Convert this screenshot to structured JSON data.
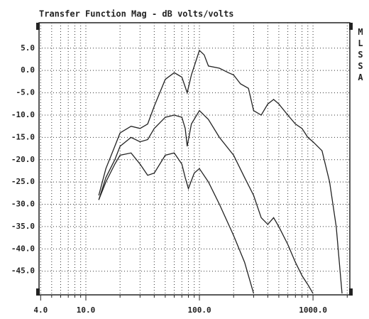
{
  "chart_data": {
    "type": "line",
    "title": "Transfer Function Mag - dB volts/volts",
    "annotation": "MLSSA",
    "log_x": true,
    "grid": true,
    "xlim": [
      3.87,
      2110
    ],
    "ylim": [
      -50.3,
      10.7
    ],
    "xticks": [
      {
        "value": 4,
        "label": "4.0"
      },
      {
        "value": 10,
        "label": "10.0"
      },
      {
        "value": 100,
        "label": "100.0"
      },
      {
        "value": 1000,
        "label": "1000.0"
      }
    ],
    "xminorticks": [
      5,
      6,
      7,
      8,
      9,
      20,
      30,
      40,
      50,
      60,
      70,
      80,
      90,
      200,
      300,
      400,
      500,
      600,
      700,
      800,
      900,
      2000
    ],
    "yticks": [
      {
        "value": 5,
        "label": "5.0"
      },
      {
        "value": 0,
        "label": "0.0"
      },
      {
        "value": -5,
        "label": "-5.0"
      },
      {
        "value": -10,
        "label": "-10.0"
      },
      {
        "value": -15,
        "label": "-15.0"
      },
      {
        "value": -20,
        "label": "-20.0"
      },
      {
        "value": -25,
        "label": "-25.0"
      },
      {
        "value": -30,
        "label": "-30.0"
      },
      {
        "value": -35,
        "label": "-35.0"
      },
      {
        "value": -40,
        "label": "-40.0"
      },
      {
        "value": -45,
        "label": "-45.0"
      }
    ],
    "series": [
      {
        "color": "#222222",
        "x": [
          13,
          15,
          18,
          20,
          25,
          30,
          35,
          40,
          50,
          60,
          65,
          70,
          78,
          85,
          100,
          110,
          120,
          150,
          180,
          200,
          230,
          270,
          300,
          350,
          400,
          450,
          500,
          600,
          700,
          800,
          900,
          1000,
          1200,
          1400,
          1600,
          1800
        ],
        "values": [
          -28,
          -22,
          -17,
          -14,
          -12.5,
          -13,
          -12,
          -8,
          -2,
          -0.5,
          -1,
          -1.5,
          -5,
          -1,
          4.5,
          3.5,
          1,
          0.5,
          -0.5,
          -1,
          -3,
          -4,
          -9,
          -10,
          -7.5,
          -6.5,
          -7.5,
          -10,
          -12,
          -13,
          -15,
          -16,
          -18,
          -25,
          -35,
          -50
        ]
      },
      {
        "color": "#222222",
        "x": [
          13,
          15,
          18,
          20,
          25,
          30,
          35,
          40,
          50,
          60,
          70,
          75,
          78,
          85,
          100,
          120,
          150,
          200,
          250,
          300,
          350,
          400,
          450,
          500,
          600,
          700,
          800,
          900,
          1000
        ],
        "values": [
          -29,
          -24,
          -20,
          -17,
          -15,
          -16,
          -15.5,
          -13,
          -10.5,
          -10,
          -10.5,
          -13,
          -17,
          -12,
          -9,
          -11,
          -15,
          -19,
          -24,
          -28,
          -33,
          -34.5,
          -33,
          -35,
          -39,
          -43,
          -46,
          -48,
          -50
        ]
      },
      {
        "color": "#222222",
        "x": [
          13,
          15,
          18,
          20,
          25,
          30,
          35,
          40,
          50,
          60,
          70,
          75,
          80,
          90,
          100,
          120,
          150,
          200,
          250,
          300
        ],
        "values": [
          -29,
          -25,
          -21,
          -19,
          -18.5,
          -21,
          -23.5,
          -23,
          -19,
          -18.5,
          -21,
          -24,
          -26.5,
          -23,
          -22,
          -25,
          -30,
          -37,
          -43,
          -50
        ]
      }
    ]
  }
}
